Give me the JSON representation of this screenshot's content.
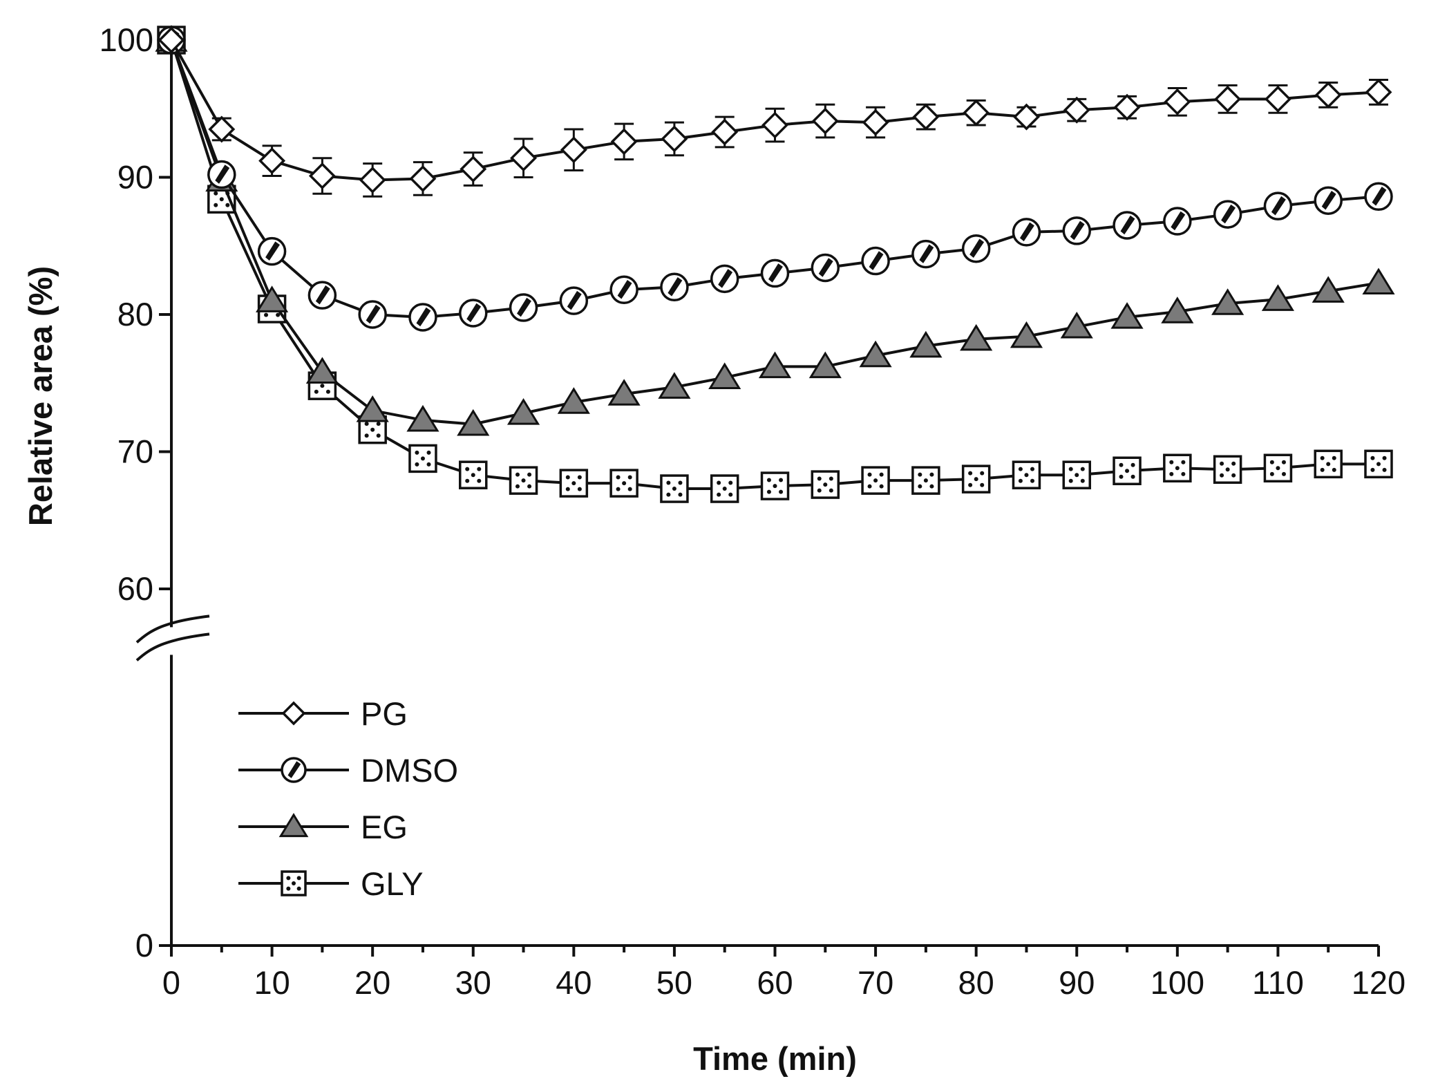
{
  "chart_data": {
    "type": "line",
    "title": "",
    "xlabel": "Time (min)",
    "ylabel": "Relative area (%)",
    "xlim": [
      0,
      120
    ],
    "ylim": [
      0,
      100
    ],
    "axis_break": {
      "from": 0,
      "to": 55,
      "note": "broken y-axis between 0 and 60"
    },
    "x_ticks": [
      0,
      10,
      20,
      30,
      40,
      50,
      60,
      70,
      80,
      90,
      100,
      110,
      120
    ],
    "y_ticks": [
      0,
      60,
      70,
      80,
      90,
      100
    ],
    "x_tick_labels": [
      "0",
      "10",
      "20",
      "30",
      "40",
      "50",
      "60",
      "70",
      "80",
      "90",
      "100",
      "110",
      "120"
    ],
    "y_tick_labels": [
      "0",
      "60",
      "70",
      "80",
      "90",
      "100"
    ],
    "legend_position": "lower-left",
    "x": [
      0,
      5,
      10,
      15,
      20,
      25,
      30,
      35,
      40,
      45,
      50,
      55,
      60,
      65,
      70,
      75,
      80,
      85,
      90,
      95,
      100,
      105,
      110,
      115,
      120
    ],
    "series": [
      {
        "name": "PG",
        "marker": "diamond",
        "values": [
          100,
          93.5,
          91.2,
          90.1,
          89.8,
          89.9,
          90.6,
          91.4,
          92.0,
          92.6,
          92.8,
          93.3,
          93.8,
          94.1,
          94.0,
          94.4,
          94.7,
          94.4,
          94.9,
          95.1,
          95.5,
          95.7,
          95.7,
          96.0,
          96.2
        ],
        "errors": [
          0,
          0.8,
          1.1,
          1.3,
          1.2,
          1.2,
          1.2,
          1.4,
          1.5,
          1.3,
          1.2,
          1.1,
          1.2,
          1.2,
          1.1,
          0.9,
          0.9,
          0.7,
          0.8,
          0.8,
          1.0,
          1.0,
          1.0,
          0.9,
          0.9
        ]
      },
      {
        "name": "DMSO",
        "marker": "circle",
        "values": [
          100,
          90.2,
          84.6,
          81.4,
          80.0,
          79.8,
          80.1,
          80.5,
          81.0,
          81.8,
          82.0,
          82.6,
          83.0,
          83.4,
          83.9,
          84.4,
          84.8,
          86.0,
          86.1,
          86.5,
          86.8,
          87.3,
          87.9,
          88.3,
          88.6
        ]
      },
      {
        "name": "EG",
        "marker": "triangle",
        "values": [
          100,
          89.8,
          81.0,
          75.8,
          73.0,
          72.3,
          72.0,
          72.8,
          73.6,
          74.2,
          74.7,
          75.4,
          76.2,
          76.2,
          77.0,
          77.7,
          78.2,
          78.4,
          79.1,
          79.8,
          80.2,
          80.8,
          81.1,
          81.7,
          82.3
        ]
      },
      {
        "name": "GLY",
        "marker": "square",
        "values": [
          100,
          88.4,
          80.4,
          74.8,
          71.6,
          69.5,
          68.3,
          67.9,
          67.7,
          67.7,
          67.3,
          67.3,
          67.5,
          67.6,
          67.9,
          67.9,
          68.0,
          68.3,
          68.3,
          68.6,
          68.8,
          68.7,
          68.8,
          69.1,
          69.1
        ]
      }
    ]
  }
}
